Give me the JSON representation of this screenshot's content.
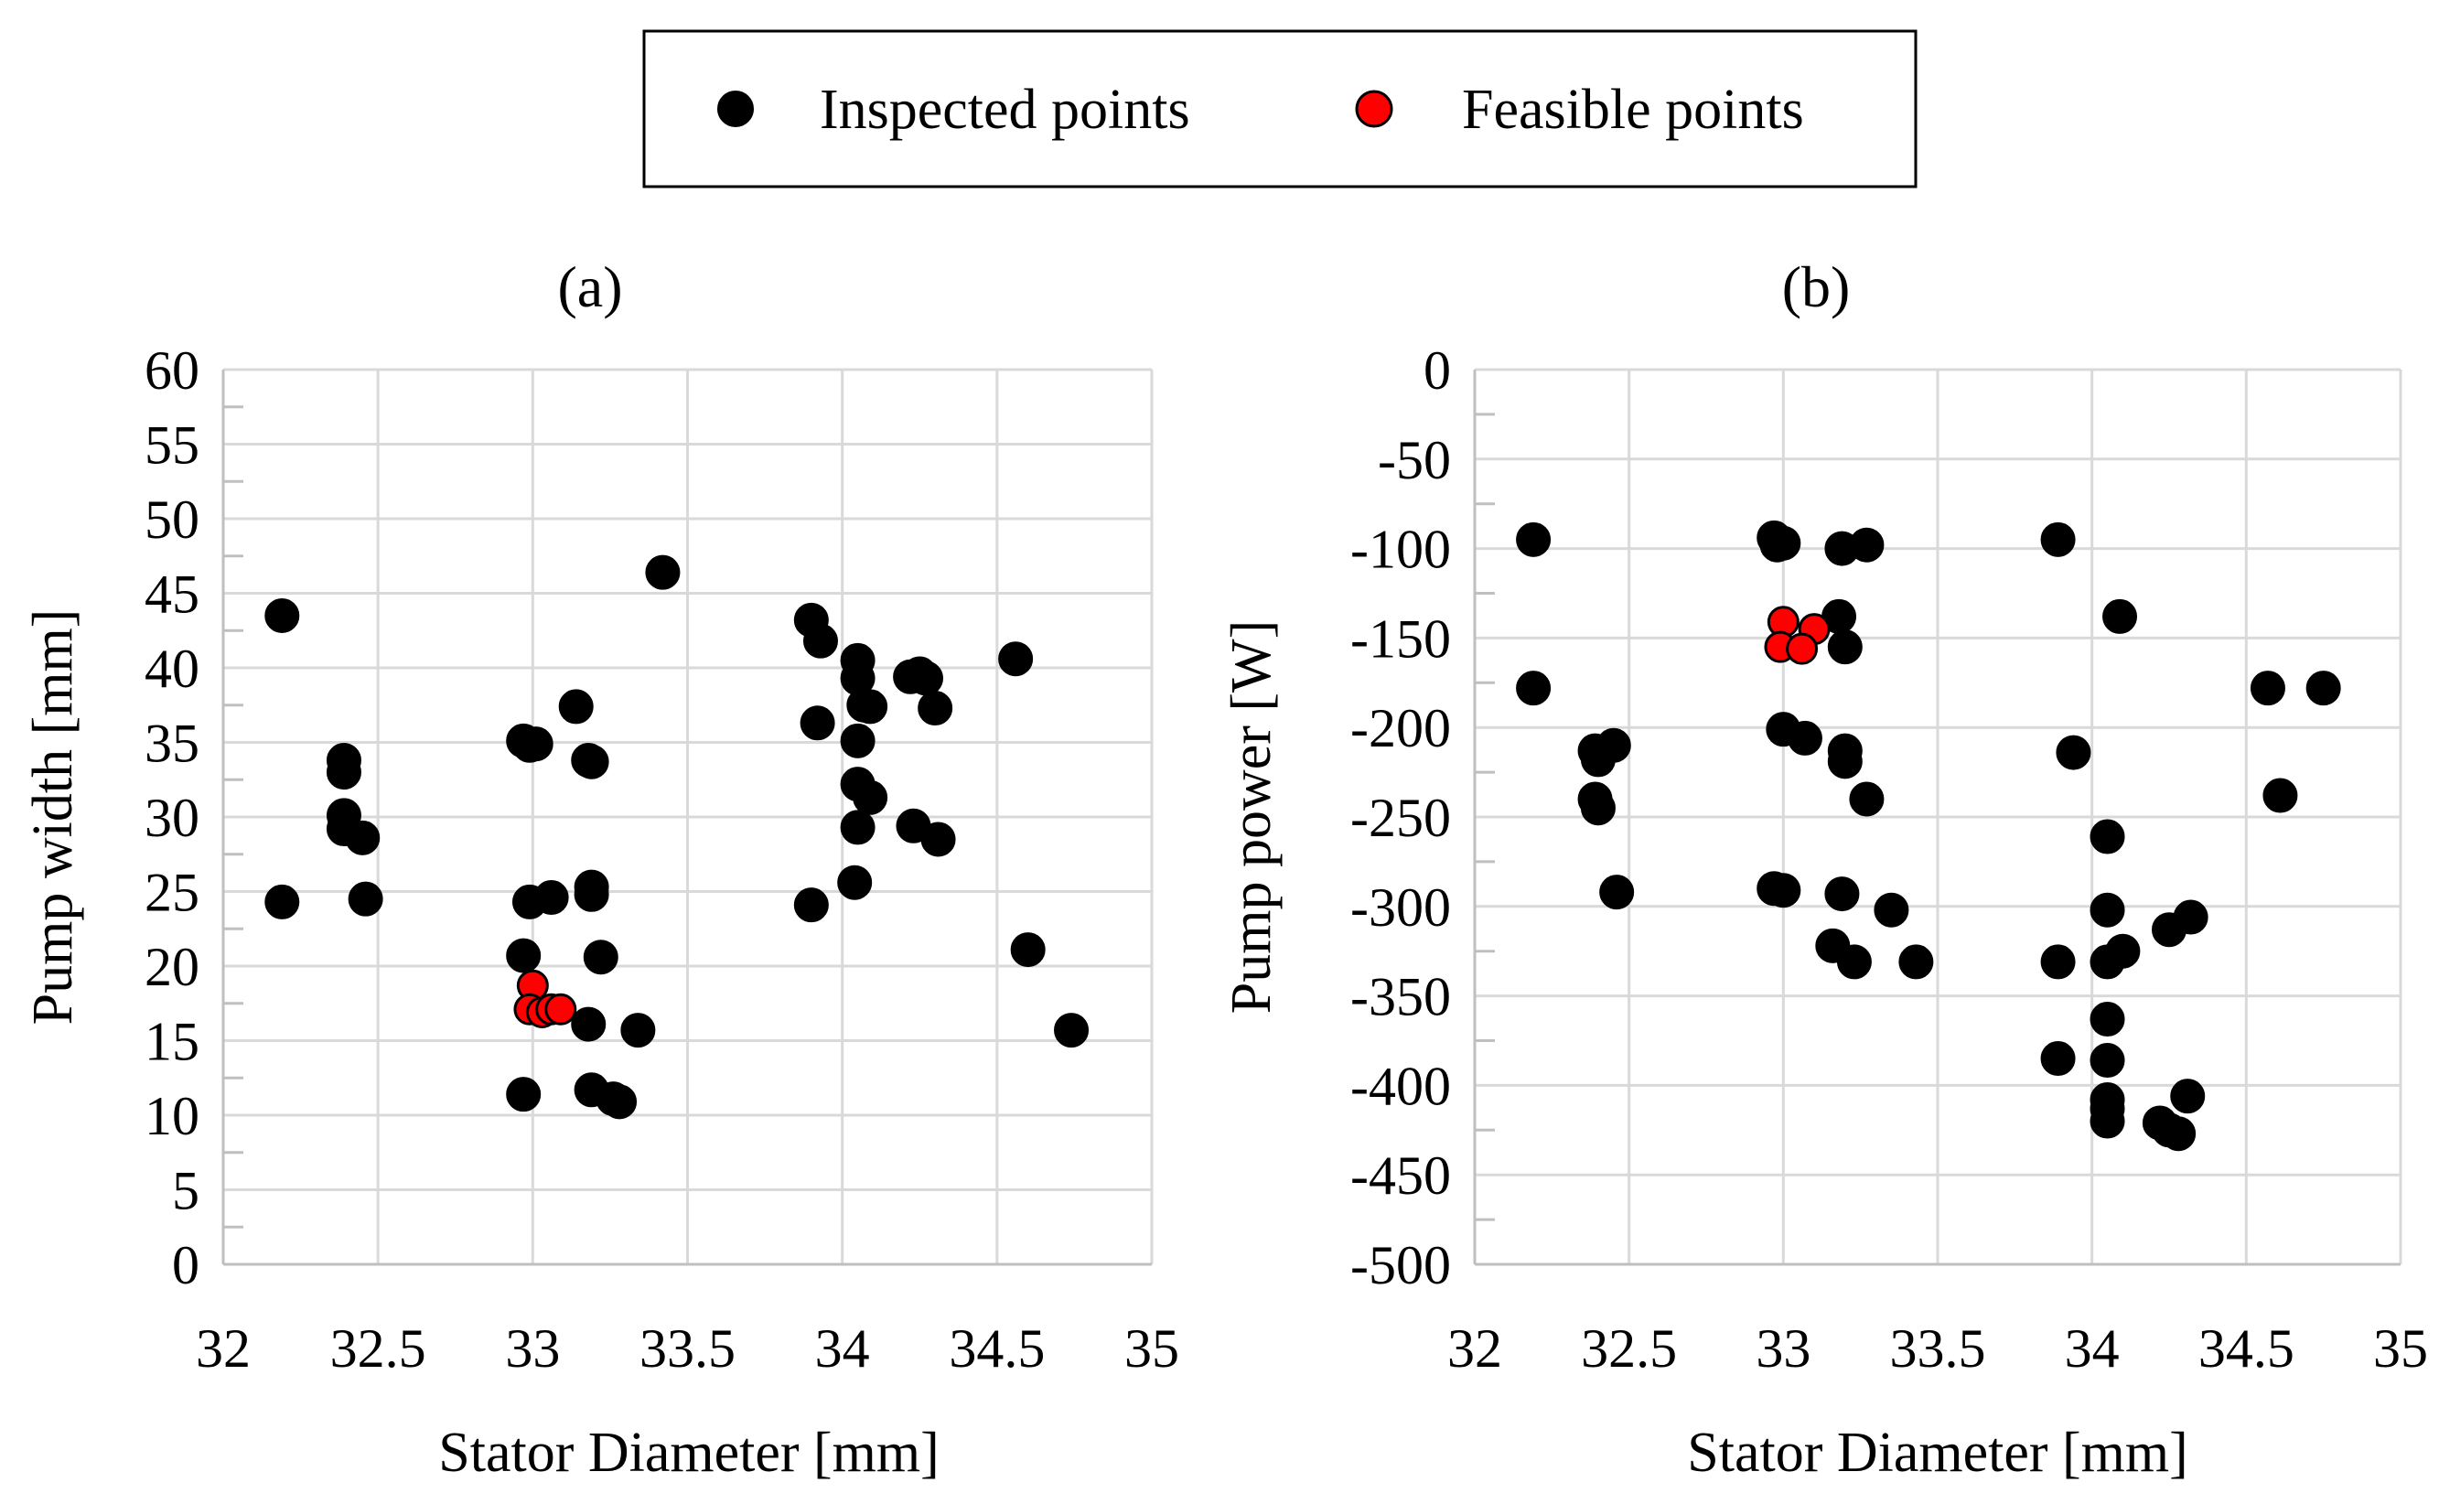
{
  "legend": {
    "items": [
      {
        "label": "Inspected points",
        "color": "#000000"
      },
      {
        "label": "Feasible points",
        "color": "#ff0000"
      }
    ]
  },
  "colors": {
    "inspected": "#000000",
    "feasible": "#ff0000",
    "grid": "#d9d9d9",
    "axis": "#bfbfbf"
  },
  "chart_data": [
    {
      "type": "scatter",
      "panel_label": "(a)",
      "title": "",
      "xlabel": "Stator Diameter [mm]",
      "ylabel": "Pump width [mm]",
      "xlim": [
        32,
        35
      ],
      "ylim": [
        0,
        60
      ],
      "x_ticks": [
        "32",
        "32.5",
        "33",
        "33.5",
        "34",
        "34.5",
        "35"
      ],
      "y_ticks": [
        "0",
        "5",
        "10",
        "15",
        "20",
        "25",
        "30",
        "35",
        "40",
        "45",
        "50",
        "55",
        "60"
      ],
      "grid": true,
      "series": [
        {
          "name": "Inspected points",
          "points": [
            [
              32.19,
              43.5
            ],
            [
              32.19,
              24.3
            ],
            [
              32.39,
              33.8
            ],
            [
              32.39,
              33.0
            ],
            [
              32.39,
              30.1
            ],
            [
              32.39,
              29.2
            ],
            [
              32.45,
              28.6
            ],
            [
              32.46,
              24.5
            ],
            [
              32.97,
              35.1
            ],
            [
              32.99,
              34.8
            ],
            [
              33.01,
              34.9
            ],
            [
              33.14,
              37.4
            ],
            [
              33.18,
              33.8
            ],
            [
              33.19,
              33.7
            ],
            [
              32.99,
              24.3
            ],
            [
              33.06,
              24.6
            ],
            [
              33.19,
              25.3
            ],
            [
              33.19,
              24.8
            ],
            [
              32.97,
              20.7
            ],
            [
              33.22,
              20.6
            ],
            [
              33.18,
              16.1
            ],
            [
              33.34,
              15.7
            ],
            [
              32.97,
              11.4
            ],
            [
              33.19,
              11.7
            ],
            [
              33.26,
              11.1
            ],
            [
              33.28,
              10.9
            ],
            [
              33.42,
              46.4
            ],
            [
              33.9,
              43.2
            ],
            [
              33.93,
              41.8
            ],
            [
              34.05,
              40.5
            ],
            [
              34.05,
              39.3
            ],
            [
              34.07,
              37.5
            ],
            [
              34.09,
              37.4
            ],
            [
              33.92,
              36.3
            ],
            [
              34.05,
              35.1
            ],
            [
              34.05,
              32.2
            ],
            [
              34.09,
              31.3
            ],
            [
              34.05,
              29.3
            ],
            [
              34.04,
              25.6
            ],
            [
              33.9,
              24.1
            ],
            [
              34.22,
              39.4
            ],
            [
              34.25,
              39.6
            ],
            [
              34.27,
              39.3
            ],
            [
              34.3,
              37.3
            ],
            [
              34.23,
              29.4
            ],
            [
              34.31,
              28.5
            ],
            [
              34.56,
              40.6
            ],
            [
              34.6,
              21.1
            ],
            [
              34.74,
              15.7
            ]
          ]
        },
        {
          "name": "Feasible points",
          "points": [
            [
              33.0,
              18.7
            ],
            [
              32.99,
              17.1
            ],
            [
              33.03,
              16.9
            ],
            [
              33.06,
              17.1
            ],
            [
              33.09,
              17.1
            ]
          ]
        }
      ]
    },
    {
      "type": "scatter",
      "panel_label": "(b)",
      "title": "",
      "xlabel": "Stator Diameter [mm]",
      "ylabel": "Pump power [W]",
      "xlim": [
        32,
        35
      ],
      "ylim": [
        -500,
        0
      ],
      "x_ticks": [
        "32",
        "32.5",
        "33",
        "33.5",
        "34",
        "34.5",
        "35"
      ],
      "y_ticks": [
        "-500",
        "-450",
        "-400",
        "-350",
        "-300",
        "-250",
        "-200",
        "-150",
        "-100",
        "-50",
        "0"
      ],
      "grid": true,
      "series": [
        {
          "name": "Inspected points",
          "points": [
            [
              32.19,
              -95
            ],
            [
              32.19,
              -178
            ],
            [
              32.39,
              -213
            ],
            [
              32.4,
              -218
            ],
            [
              32.45,
              -210
            ],
            [
              32.39,
              -240
            ],
            [
              32.4,
              -245
            ],
            [
              32.46,
              -292
            ],
            [
              32.97,
              -94
            ],
            [
              32.98,
              -98
            ],
            [
              33.0,
              -97
            ],
            [
              33.19,
              -100
            ],
            [
              33.27,
              -98
            ],
            [
              33.18,
              -138
            ],
            [
              33.2,
              -155
            ],
            [
              33.0,
              -201
            ],
            [
              33.07,
              -206
            ],
            [
              33.2,
              -213
            ],
            [
              33.2,
              -219
            ],
            [
              33.27,
              -240
            ],
            [
              32.97,
              -290
            ],
            [
              33.0,
              -291
            ],
            [
              33.19,
              -293
            ],
            [
              33.35,
              -302
            ],
            [
              33.16,
              -322
            ],
            [
              33.23,
              -331
            ],
            [
              33.43,
              -331
            ],
            [
              33.89,
              -95
            ],
            [
              34.09,
              -138
            ],
            [
              33.94,
              -214
            ],
            [
              34.05,
              -261
            ],
            [
              34.05,
              -302
            ],
            [
              34.05,
              -331
            ],
            [
              34.1,
              -325
            ],
            [
              33.89,
              -331
            ],
            [
              34.05,
              -363
            ],
            [
              33.89,
              -385
            ],
            [
              34.05,
              -386
            ],
            [
              34.05,
              -408
            ],
            [
              34.05,
              -413
            ],
            [
              34.05,
              -420
            ],
            [
              34.22,
              -421
            ],
            [
              34.25,
              -425
            ],
            [
              34.28,
              -427
            ],
            [
              34.31,
              -406
            ],
            [
              34.25,
              -313
            ],
            [
              34.32,
              -306
            ],
            [
              34.57,
              -178
            ],
            [
              34.75,
              -178
            ],
            [
              34.61,
              -238
            ]
          ]
        },
        {
          "name": "Feasible points",
          "points": [
            [
              33.0,
              -141
            ],
            [
              33.1,
              -145
            ],
            [
              32.99,
              -155
            ],
            [
              33.06,
              -156
            ]
          ]
        }
      ]
    }
  ]
}
